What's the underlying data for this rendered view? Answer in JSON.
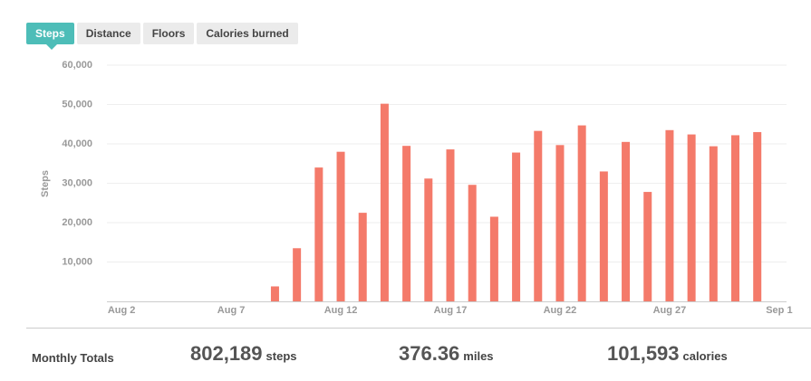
{
  "tabs": [
    "Steps",
    "Distance",
    "Floors",
    "Calories burned"
  ],
  "active_tab": 0,
  "chart_data": {
    "type": "bar",
    "y_label": "Steps",
    "categories": [
      "Aug 2",
      null,
      null,
      null,
      null,
      "Aug 7",
      null,
      null,
      null,
      null,
      "Aug 12",
      null,
      null,
      null,
      null,
      "Aug 17",
      null,
      null,
      null,
      null,
      "Aug 22",
      null,
      null,
      null,
      null,
      "Aug 27",
      null,
      null,
      null,
      null,
      "Sep 1"
    ],
    "values": [
      null,
      null,
      null,
      null,
      null,
      null,
      null,
      3800,
      13500,
      34000,
      38000,
      22500,
      50200,
      39500,
      31200,
      38600,
      29600,
      21500,
      37800,
      43300,
      39700,
      44700,
      33000,
      40500,
      27800,
      43500,
      42400,
      39400,
      42200,
      43000,
      null
    ],
    "color": "#f47a6a",
    "ylim": [
      0,
      60000
    ],
    "yticks": [
      {
        "value": 10000,
        "label": "10,000"
      },
      {
        "value": 20000,
        "label": "20,000"
      },
      {
        "value": 30000,
        "label": "30,000"
      },
      {
        "value": 40000,
        "label": "40,000"
      },
      {
        "value": 50000,
        "label": "50,000"
      },
      {
        "value": 60000,
        "label": "60,000"
      }
    ],
    "grid": true
  },
  "totals": {
    "label": "Monthly Totals",
    "items": [
      {
        "value": "802,189",
        "unit": "steps"
      },
      {
        "value": "376.36",
        "unit": "miles"
      },
      {
        "value": "101,593",
        "unit": "calories"
      }
    ]
  }
}
